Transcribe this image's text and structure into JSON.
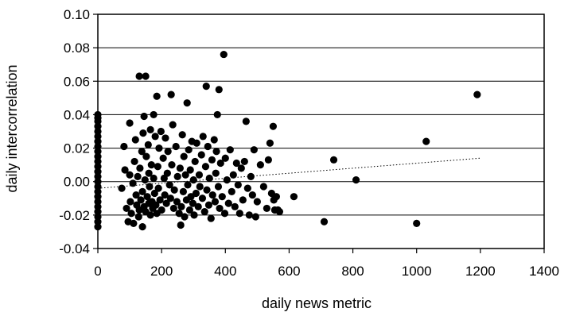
{
  "chart_data": {
    "type": "scatter",
    "title": "",
    "xlabel": "daily news metric",
    "ylabel": "daily intercorrelation",
    "xlim": [
      0,
      1400
    ],
    "ylim": [
      -0.04,
      0.1
    ],
    "x_ticks": [
      "0",
      "200",
      "400",
      "600",
      "800",
      "1000",
      "1200",
      "1400"
    ],
    "y_ticks": [
      "-0.04",
      "-0.02",
      "0.00",
      "0.02",
      "0.04",
      "0.06",
      "0.08",
      "0.10"
    ],
    "x_tick_values": [
      0,
      200,
      400,
      600,
      800,
      1000,
      1200,
      1400
    ],
    "y_tick_values": [
      -0.04,
      -0.02,
      0.0,
      0.02,
      0.04,
      0.06,
      0.08,
      0.1
    ],
    "grid": "horizontal",
    "legend": "none",
    "marker_color": "#000000",
    "trendline": {
      "style": "dotted",
      "from": [
        0,
        -0.004
      ],
      "to": [
        1200,
        0.014
      ]
    },
    "points": [
      [
        0,
        0.04
      ],
      [
        0,
        0.038
      ],
      [
        0,
        0.036
      ],
      [
        0,
        0.033
      ],
      [
        0,
        0.03
      ],
      [
        0,
        0.027
      ],
      [
        0,
        0.024
      ],
      [
        0,
        0.021
      ],
      [
        0,
        0.018
      ],
      [
        0,
        0.015
      ],
      [
        0,
        0.012
      ],
      [
        0,
        0.009
      ],
      [
        0,
        0.006
      ],
      [
        0,
        0.003
      ],
      [
        0,
        0.0
      ],
      [
        0,
        -0.003
      ],
      [
        0,
        -0.006
      ],
      [
        0,
        -0.009
      ],
      [
        0,
        -0.012
      ],
      [
        0,
        -0.015
      ],
      [
        0,
        -0.018
      ],
      [
        0,
        -0.021
      ],
      [
        0,
        -0.024
      ],
      [
        0,
        -0.027
      ],
      [
        75,
        -0.004
      ],
      [
        82,
        0.021
      ],
      [
        85,
        0.007
      ],
      [
        90,
        -0.016
      ],
      [
        95,
        -0.024
      ],
      [
        100,
        0.035
      ],
      [
        100,
        0.004
      ],
      [
        102,
        -0.012
      ],
      [
        105,
        -0.019
      ],
      [
        110,
        -0.001
      ],
      [
        112,
        -0.025
      ],
      [
        115,
        0.012
      ],
      [
        118,
        0.025
      ],
      [
        120,
        -0.008
      ],
      [
        122,
        -0.014
      ],
      [
        125,
        0.003
      ],
      [
        128,
        -0.021
      ],
      [
        130,
        0.063
      ],
      [
        130,
        -0.017
      ],
      [
        132,
        0.008
      ],
      [
        135,
        -0.011
      ],
      [
        138,
        0.018
      ],
      [
        140,
        -0.027
      ],
      [
        140,
        -0.006
      ],
      [
        142,
        0.029
      ],
      [
        145,
        0.039
      ],
      [
        145,
        -0.015
      ],
      [
        148,
        0.001
      ],
      [
        150,
        0.063
      ],
      [
        150,
        -0.018
      ],
      [
        152,
        0.015
      ],
      [
        155,
        -0.009
      ],
      [
        158,
        0.022
      ],
      [
        160,
        -0.013
      ],
      [
        160,
        0.005
      ],
      [
        162,
        -0.003
      ],
      [
        165,
        0.031
      ],
      [
        165,
        -0.02
      ],
      [
        168,
        0.01
      ],
      [
        170,
        -0.012
      ],
      [
        172,
        -0.016
      ],
      [
        175,
        0.04
      ],
      [
        175,
        0.002
      ],
      [
        178,
        -0.007
      ],
      [
        180,
        0.027
      ],
      [
        182,
        -0.014
      ],
      [
        185,
        0.051
      ],
      [
        185,
        -0.019
      ],
      [
        188,
        0.009
      ],
      [
        190,
        -0.004
      ],
      [
        192,
        0.02
      ],
      [
        195,
        -0.011
      ],
      [
        198,
        0.03
      ],
      [
        200,
        -0.017
      ],
      [
        205,
        0.014
      ],
      [
        208,
        0.002
      ],
      [
        210,
        -0.008
      ],
      [
        212,
        0.026
      ],
      [
        215,
        -0.013
      ],
      [
        218,
        0.005
      ],
      [
        220,
        0.018
      ],
      [
        225,
        -0.002
      ],
      [
        228,
        -0.01
      ],
      [
        230,
        0.052
      ],
      [
        232,
        0.01
      ],
      [
        235,
        0.034
      ],
      [
        238,
        -0.016
      ],
      [
        240,
        -0.005
      ],
      [
        245,
        0.021
      ],
      [
        248,
        -0.012
      ],
      [
        250,
        0.003
      ],
      [
        255,
        -0.019
      ],
      [
        258,
        0.008
      ],
      [
        260,
        -0.026
      ],
      [
        262,
        -0.015
      ],
      [
        265,
        0.028
      ],
      [
        268,
        -0.006
      ],
      [
        270,
        0.015
      ],
      [
        272,
        -0.021
      ],
      [
        275,
        0.004
      ],
      [
        278,
        -0.011
      ],
      [
        280,
        0.047
      ],
      [
        282,
        -0.002
      ],
      [
        285,
        0.019
      ],
      [
        288,
        -0.017
      ],
      [
        290,
        0.007
      ],
      [
        292,
        -0.009
      ],
      [
        295,
        0.024
      ],
      [
        298,
        -0.013
      ],
      [
        300,
        0.001
      ],
      [
        302,
        -0.02
      ],
      [
        305,
        0.012
      ],
      [
        308,
        -0.007
      ],
      [
        310,
        0.023
      ],
      [
        315,
        -0.015
      ],
      [
        318,
        0.004
      ],
      [
        320,
        -0.003
      ],
      [
        325,
        0.016
      ],
      [
        328,
        -0.01
      ],
      [
        330,
        0.027
      ],
      [
        335,
        -0.018
      ],
      [
        338,
        0.009
      ],
      [
        340,
        0.057
      ],
      [
        342,
        -0.005
      ],
      [
        345,
        0.021
      ],
      [
        348,
        -0.014
      ],
      [
        350,
        0.002
      ],
      [
        355,
        -0.022
      ],
      [
        358,
        0.013
      ],
      [
        360,
        -0.008
      ],
      [
        365,
        0.025
      ],
      [
        368,
        -0.012
      ],
      [
        370,
        0.005
      ],
      [
        372,
        0.018
      ],
      [
        375,
        0.04
      ],
      [
        378,
        -0.003
      ],
      [
        380,
        0.055
      ],
      [
        382,
        -0.016
      ],
      [
        385,
        0.011
      ],
      [
        390,
        -0.009
      ],
      [
        395,
        0.076
      ],
      [
        398,
        -0.019
      ],
      [
        400,
        0.014
      ],
      [
        405,
        0.001
      ],
      [
        410,
        -0.013
      ],
      [
        415,
        0.019
      ],
      [
        420,
        -0.006
      ],
      [
        425,
        0.004
      ],
      [
        430,
        -0.015
      ],
      [
        435,
        0.011
      ],
      [
        440,
        -0.002
      ],
      [
        445,
        -0.019
      ],
      [
        450,
        0.008
      ],
      [
        455,
        -0.011
      ],
      [
        460,
        0.012
      ],
      [
        465,
        0.036
      ],
      [
        470,
        -0.004
      ],
      [
        475,
        -0.02
      ],
      [
        480,
        0.003
      ],
      [
        485,
        -0.008
      ],
      [
        490,
        0.019
      ],
      [
        495,
        -0.021
      ],
      [
        500,
        -0.012
      ],
      [
        510,
        0.01
      ],
      [
        520,
        -0.003
      ],
      [
        530,
        -0.016
      ],
      [
        535,
        0.013
      ],
      [
        540,
        0.023
      ],
      [
        545,
        -0.007
      ],
      [
        550,
        0.033
      ],
      [
        552,
        -0.011
      ],
      [
        555,
        -0.017
      ],
      [
        560,
        -0.009
      ],
      [
        565,
        -0.017
      ],
      [
        570,
        -0.018
      ],
      [
        615,
        -0.009
      ],
      [
        710,
        -0.024
      ],
      [
        740,
        0.013
      ],
      [
        810,
        0.001
      ],
      [
        1000,
        -0.025
      ],
      [
        1030,
        0.024
      ],
      [
        1190,
        0.052
      ]
    ]
  }
}
